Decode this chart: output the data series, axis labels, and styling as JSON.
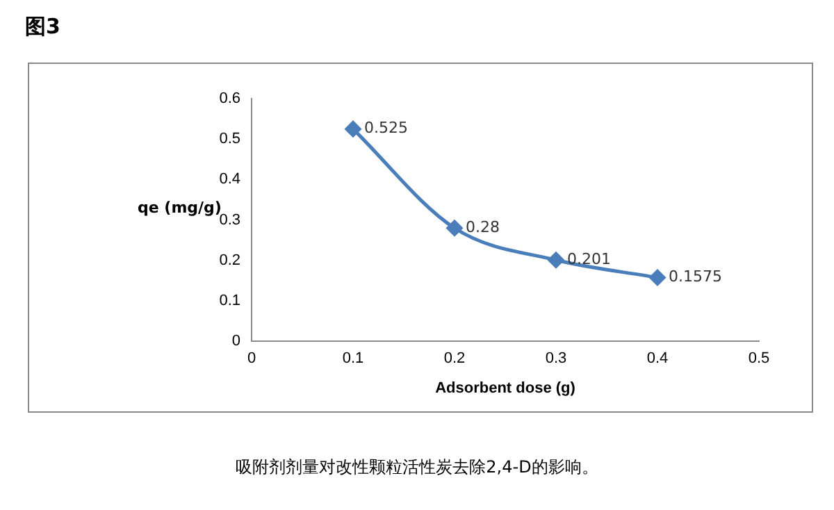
{
  "chart_data": {
    "type": "line",
    "title": "图3",
    "xlabel": "Adsorbent dose (g)",
    "ylabel": "qe (mg/g)",
    "annotations": [
      "吸附剂剂量对改性颗粒活性炭去除2,4-D的影响。"
    ],
    "x": [
      0.1,
      0.2,
      0.3,
      0.4
    ],
    "series": [
      {
        "color": "#4a7ebb",
        "values": [
          0.525,
          0.28,
          0.201,
          0.1575
        ]
      }
    ],
    "xlim": [
      0,
      0.5
    ],
    "xticks": [
      0,
      0.1,
      0.2,
      0.3,
      0.4,
      0.5
    ],
    "ylim": [
      0,
      0.6
    ],
    "yticks": [
      0,
      0.1,
      0.2,
      0.3,
      0.4,
      0.5,
      0.6
    ],
    "grid": false,
    "legend": false,
    "marker": "diamond",
    "line_style": "solid",
    "data_labels": true
  }
}
